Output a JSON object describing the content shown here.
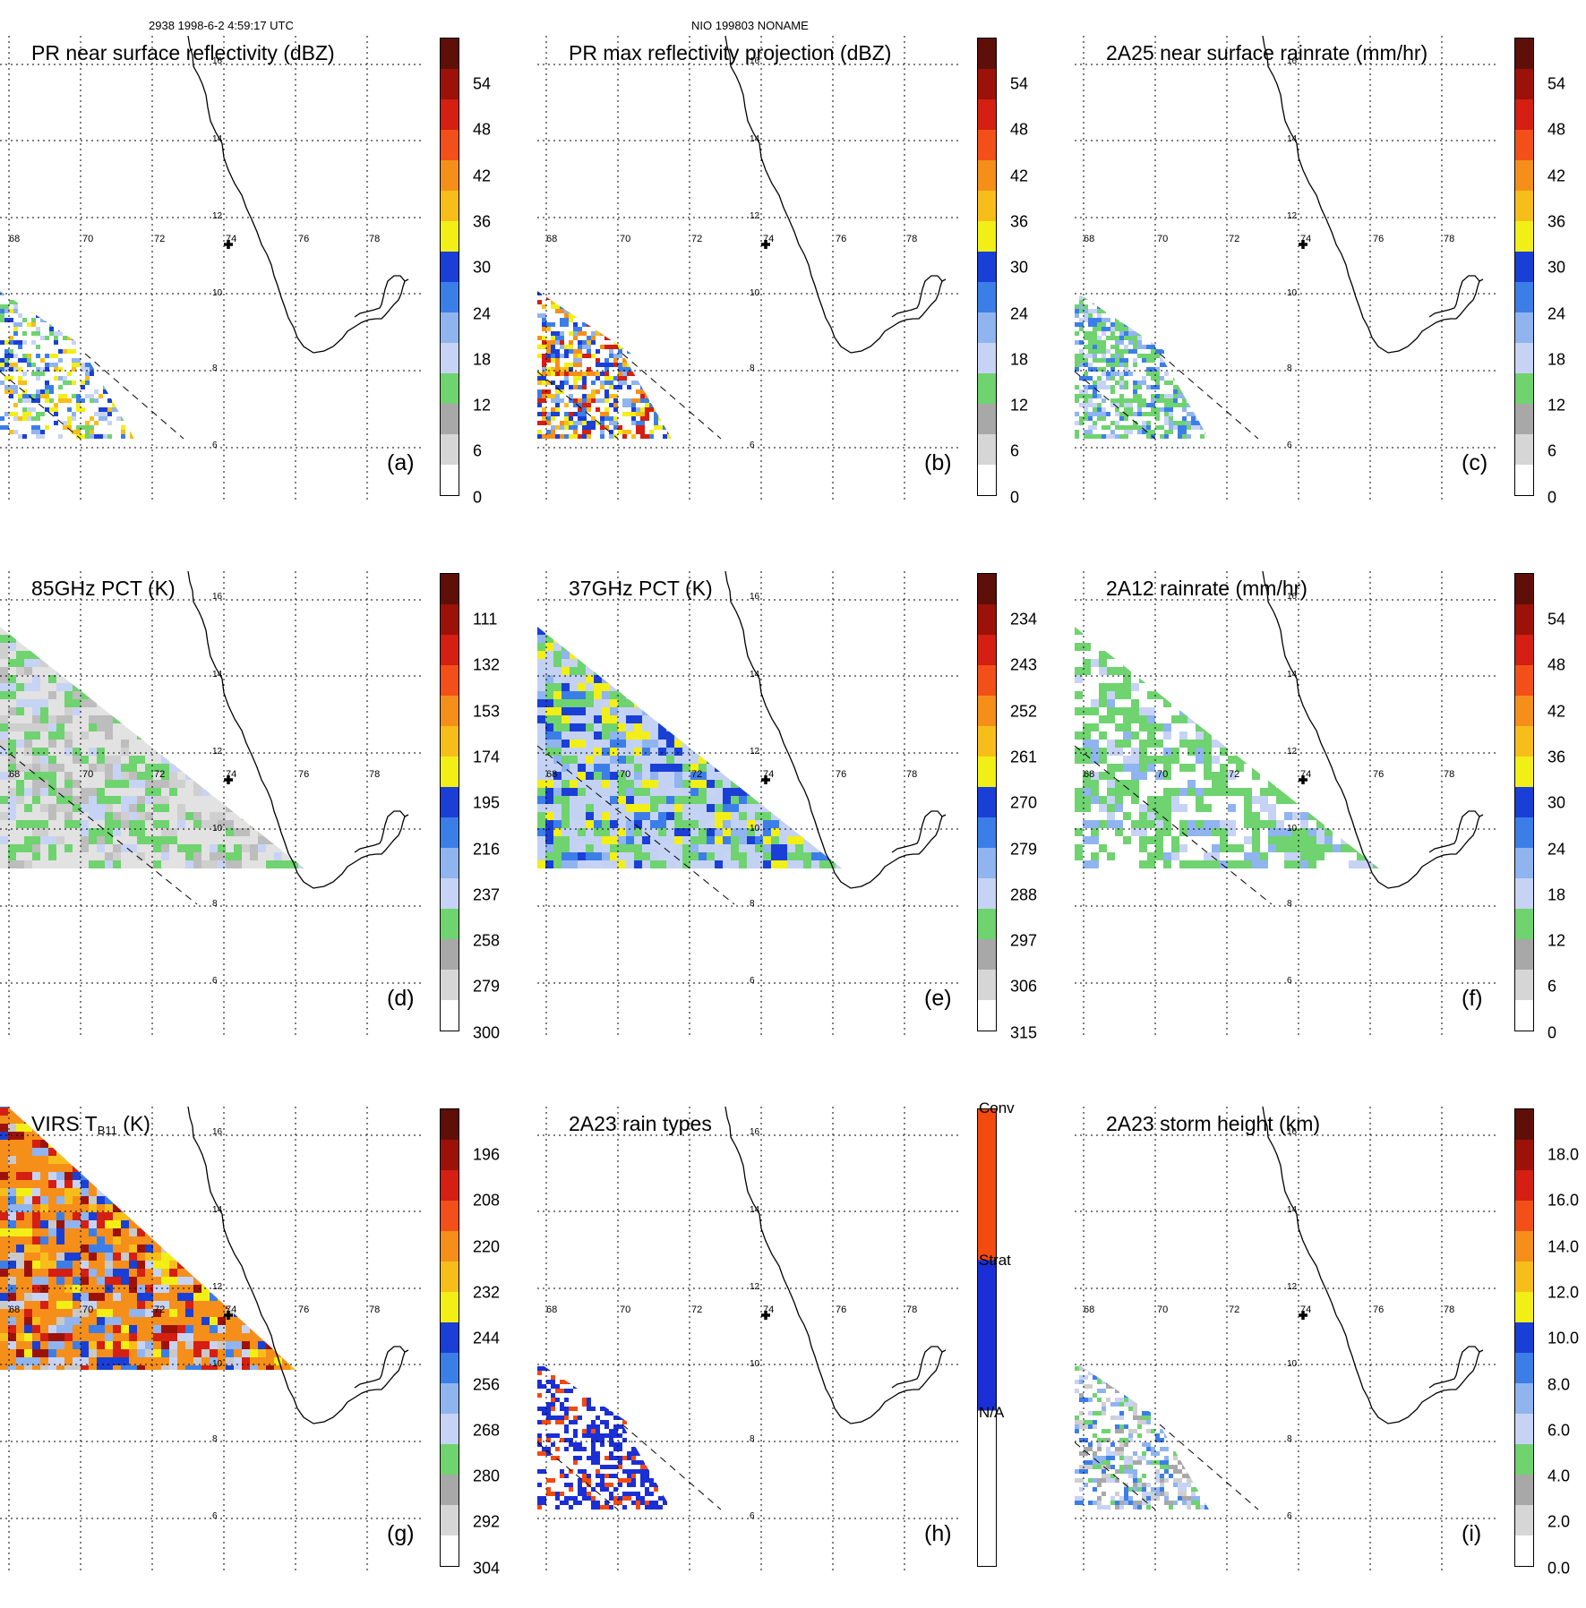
{
  "header": {
    "orbit_info": "2938 1998-6-2 4:59:17 UTC",
    "storm_info": "NIO 199803 NONAME"
  },
  "map": {
    "lat_labels": [
      "16",
      "14",
      "12",
      "10",
      "8",
      "6"
    ],
    "lon_labels": [
      "68",
      "70",
      "72",
      "74",
      "76",
      "78"
    ]
  },
  "chart_data": [
    {
      "type": "heatmap",
      "panel": "(a)",
      "title": "PR near surface reflectivity (dBZ)",
      "colorbar_ticks": [
        "54",
        "48",
        "42",
        "36",
        "30",
        "24",
        "18",
        "12",
        "6",
        "0"
      ],
      "swath": "PR"
    },
    {
      "type": "heatmap",
      "panel": "(b)",
      "title": "PR max reflectivity projection (dBZ)",
      "colorbar_ticks": [
        "54",
        "48",
        "42",
        "36",
        "30",
        "24",
        "18",
        "12",
        "6",
        "0"
      ],
      "swath": "PR"
    },
    {
      "type": "heatmap",
      "panel": "(c)",
      "title": "2A25 near surface rainrate (mm/hr)",
      "colorbar_ticks": [
        "54",
        "48",
        "42",
        "36",
        "30",
        "24",
        "18",
        "12",
        "6",
        "0"
      ],
      "swath": "PR"
    },
    {
      "type": "heatmap",
      "panel": "(d)",
      "title": "85GHz PCT (K)",
      "colorbar_ticks": [
        "111",
        "132",
        "153",
        "174",
        "195",
        "216",
        "237",
        "258",
        "279",
        "300"
      ],
      "swath": "TMI"
    },
    {
      "type": "heatmap",
      "panel": "(e)",
      "title": "37GHz PCT (K)",
      "colorbar_ticks": [
        "234",
        "243",
        "252",
        "261",
        "270",
        "279",
        "288",
        "297",
        "306",
        "315"
      ],
      "swath": "TMI"
    },
    {
      "type": "heatmap",
      "panel": "(f)",
      "title": "2A12 rainrate (mm/hr)",
      "colorbar_ticks": [
        "54",
        "48",
        "42",
        "36",
        "30",
        "24",
        "18",
        "12",
        "6",
        "0"
      ],
      "swath": "TMI"
    },
    {
      "type": "heatmap",
      "panel": "(g)",
      "title_main": "VIRS T",
      "title_sub": "B11",
      "title_unit": " (K)",
      "colorbar_ticks": [
        "196",
        "208",
        "220",
        "232",
        "244",
        "256",
        "268",
        "280",
        "292",
        "304"
      ],
      "swath": "VIRS"
    },
    {
      "type": "heatmap",
      "panel": "(h)",
      "title": "2A23 rain types",
      "colorbar_ticks": [
        "Conv",
        "Strat",
        "N/A"
      ],
      "swath": "PR"
    },
    {
      "type": "heatmap",
      "panel": "(i)",
      "title": "2A23 storm height (km)",
      "colorbar_ticks": [
        "18.0",
        "16.0",
        "14.0",
        "12.0",
        "10.0",
        "8.0",
        "6.0",
        "4.0",
        "2.0",
        "0.0"
      ],
      "swath": "PR"
    }
  ],
  "colors": {
    "scale": [
      "#ffffff",
      "#d6d6d6",
      "#a8a8a8",
      "#6fd36f",
      "#c7d3f5",
      "#8fb4f0",
      "#3c7ee8",
      "#1a3fd6",
      "#f2ef17",
      "#f7be1a",
      "#f58f1a",
      "#f25018",
      "#d41f12",
      "#9c1208",
      "#5e0f08"
    ],
    "rain_conv": "#f24a0f",
    "rain_strat": "#1a2fd6",
    "land": "#000000"
  }
}
